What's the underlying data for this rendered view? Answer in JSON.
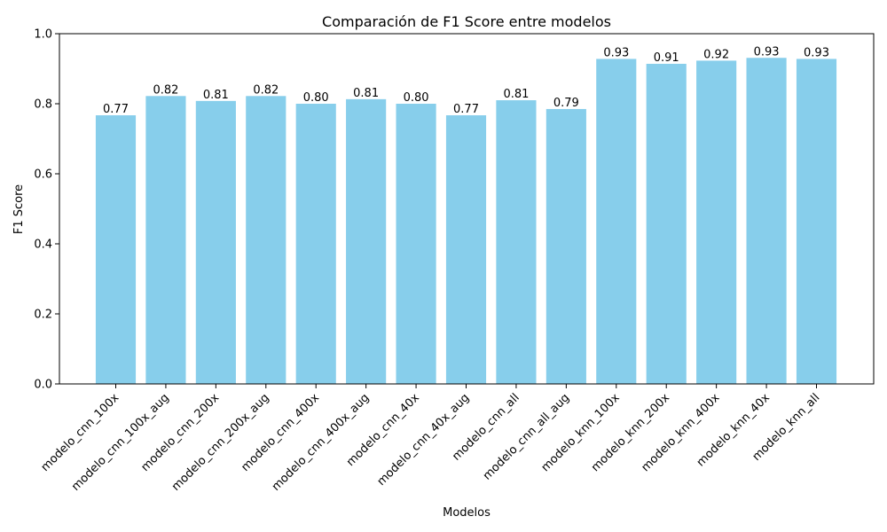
{
  "chart_data": {
    "type": "bar",
    "title": "Comparación de F1 Score entre modelos",
    "xlabel": "Modelos",
    "ylabel": "F1 Score",
    "ylim": [
      0,
      1.0
    ],
    "yticks": [
      "0.0",
      "0.2",
      "0.4",
      "0.6",
      "0.8",
      "1.0"
    ],
    "grid": false,
    "legend": "none",
    "bar_color": "#87ceeb",
    "categories": [
      "modelo_cnn_100x",
      "modelo_cnn_100x_aug",
      "modelo_cnn_200x",
      "modelo_cnn_200x_aug",
      "modelo_cnn_400x",
      "modelo_cnn_400x_aug",
      "modelo_cnn_40x",
      "modelo_cnn_40x_aug",
      "modelo_cnn_all",
      "modelo_cnn_all_aug",
      "modelo_knn_100x",
      "modelo_knn_200x",
      "modelo_knn_400x",
      "modelo_knn_40x",
      "modelo_knn_all"
    ],
    "values": [
      0.767,
      0.822,
      0.808,
      0.822,
      0.8,
      0.813,
      0.8,
      0.767,
      0.81,
      0.785,
      0.928,
      0.914,
      0.923,
      0.931,
      0.928
    ],
    "data_labels": [
      "0.77",
      "0.82",
      "0.81",
      "0.82",
      "0.80",
      "0.81",
      "0.80",
      "0.77",
      "0.81",
      "0.79",
      "0.93",
      "0.91",
      "0.92",
      "0.93",
      "0.93"
    ]
  }
}
